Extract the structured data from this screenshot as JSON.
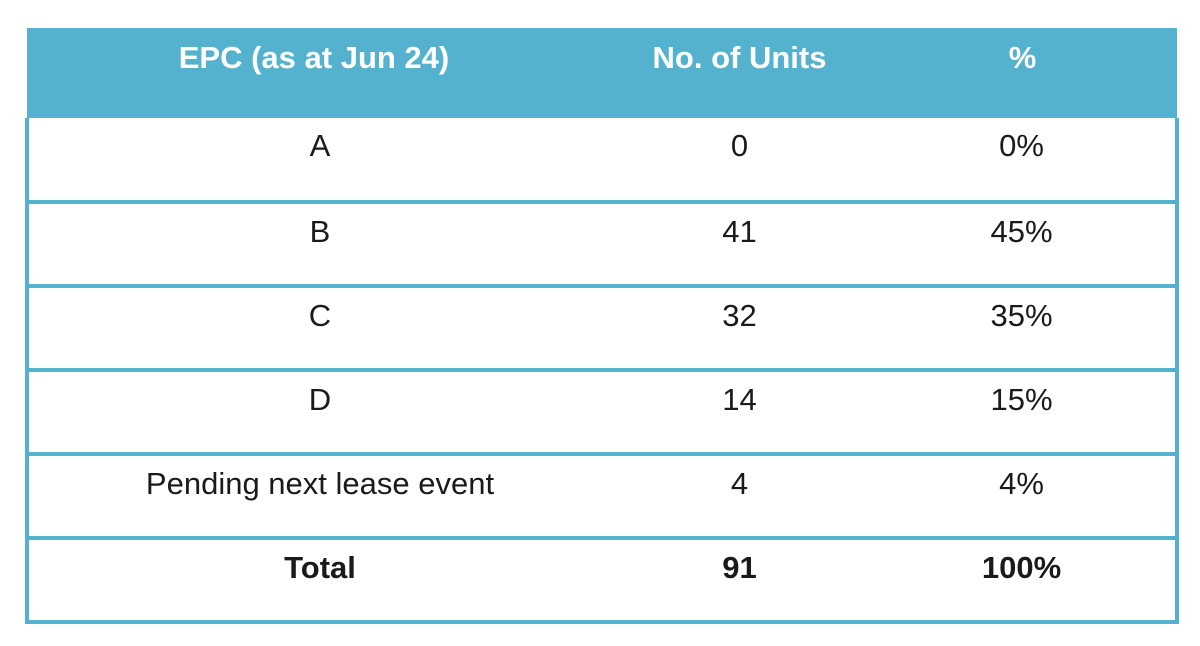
{
  "table": {
    "headers": [
      "EPC (as at Jun 24)",
      "No. of Units",
      "%"
    ],
    "rows": [
      {
        "epc": "A",
        "units": "0",
        "percent": "0%"
      },
      {
        "epc": "B",
        "units": "41",
        "percent": "45%"
      },
      {
        "epc": "C",
        "units": "32",
        "percent": "35%"
      },
      {
        "epc": "D",
        "units": "14",
        "percent": "15%"
      },
      {
        "epc": "Pending next lease event",
        "units": "4",
        "percent": "4%"
      }
    ],
    "total": {
      "epc": "Total",
      "units": "91",
      "percent": "100%"
    },
    "colors": {
      "header_bg": "#55b2ce",
      "header_text": "#ffffff",
      "border": "#55b2ce",
      "body_text": "#1a1a1a"
    }
  }
}
